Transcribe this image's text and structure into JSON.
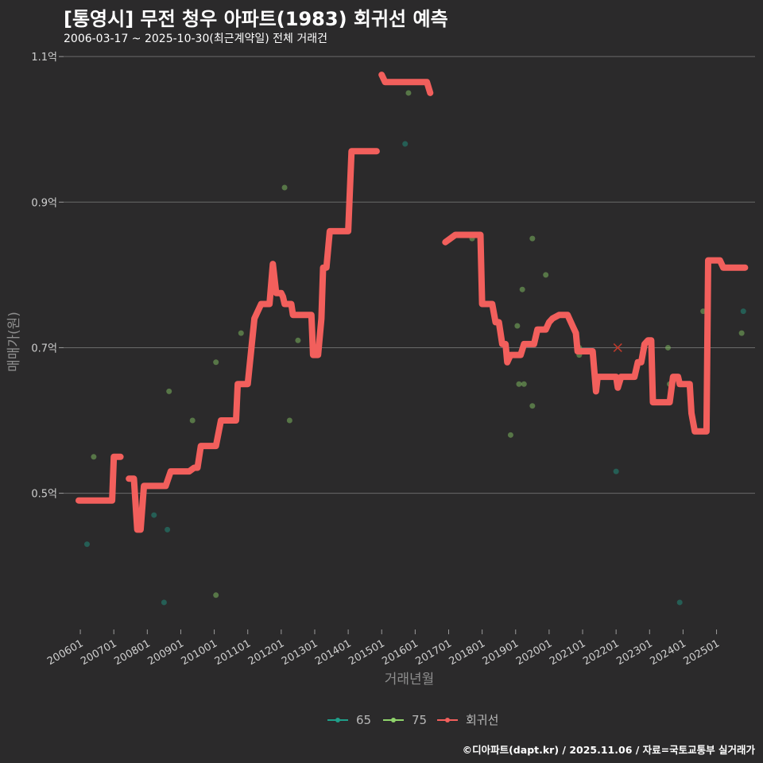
{
  "title": "[통영시] 무전 청우 아파트(1983) 회귀선 예측",
  "subtitle": "2006-03-17 ~ 2025-10-30(최근계약일) 전체 거래건",
  "caption": "©디아파트(dapt.kr) / 2025.11.06 / 자료=국토교통부 실거래가",
  "colors": {
    "background": "#2b2a2b",
    "grid": "#6b6b6b",
    "s65": "#1f9e89",
    "s75": "#8fd36b",
    "regression": "#f25f5c",
    "marker_x": "#c0392b"
  },
  "chart_data": {
    "type": "scatter",
    "title": "[통영시] 무전 청우 아파트(1983) 회귀선 예측",
    "xlabel": "거래년월",
    "ylabel": "매매가(원)",
    "x_unit": "decimal year",
    "ylim": [
      0.315,
      1.11
    ],
    "xlim": [
      2005.5,
      2026.15
    ],
    "y_ticks": [
      {
        "value": 0.5,
        "label": "0.5억"
      },
      {
        "value": 0.7,
        "label": "0.7억"
      },
      {
        "value": 0.9,
        "label": "0.9억"
      },
      {
        "value": 1.1,
        "label": "1.1억"
      }
    ],
    "x_ticks": [
      {
        "value": 2006,
        "label": "200601"
      },
      {
        "value": 2007,
        "label": "200701"
      },
      {
        "value": 2008,
        "label": "200801"
      },
      {
        "value": 2009,
        "label": "200901"
      },
      {
        "value": 2010,
        "label": "201001"
      },
      {
        "value": 2011,
        "label": "201101"
      },
      {
        "value": 2012,
        "label": "201201"
      },
      {
        "value": 2013,
        "label": "201301"
      },
      {
        "value": 2014,
        "label": "201401"
      },
      {
        "value": 2015,
        "label": "201501"
      },
      {
        "value": 2016,
        "label": "201601"
      },
      {
        "value": 2017,
        "label": "201701"
      },
      {
        "value": 2018,
        "label": "201801"
      },
      {
        "value": 2019,
        "label": "201901"
      },
      {
        "value": 2020,
        "label": "202001"
      },
      {
        "value": 2021,
        "label": "202101"
      },
      {
        "value": 2022,
        "label": "202201"
      },
      {
        "value": 2023,
        "label": "202301"
      },
      {
        "value": 2024,
        "label": "202401"
      },
      {
        "value": 2025,
        "label": "202501"
      }
    ],
    "legend": [
      {
        "name": "65",
        "key": "s65"
      },
      {
        "name": "75",
        "key": "s75"
      },
      {
        "name": "회귀선",
        "key": "regression"
      }
    ],
    "scatter_points": [
      {
        "x": 2006.2,
        "y": 0.43,
        "series": "65"
      },
      {
        "x": 2006.4,
        "y": 0.55,
        "series": "75"
      },
      {
        "x": 2008.2,
        "y": 0.47,
        "series": "65"
      },
      {
        "x": 2008.6,
        "y": 0.45,
        "series": "65"
      },
      {
        "x": 2008.5,
        "y": 0.35,
        "series": "65"
      },
      {
        "x": 2008.65,
        "y": 0.64,
        "series": "75"
      },
      {
        "x": 2009.35,
        "y": 0.6,
        "series": "75"
      },
      {
        "x": 2010.05,
        "y": 0.68,
        "series": "75"
      },
      {
        "x": 2010.05,
        "y": 0.36,
        "series": "75"
      },
      {
        "x": 2010.8,
        "y": 0.72,
        "series": "75"
      },
      {
        "x": 2012.1,
        "y": 0.92,
        "series": "75"
      },
      {
        "x": 2012.25,
        "y": 0.6,
        "series": "75"
      },
      {
        "x": 2012.5,
        "y": 0.71,
        "series": "75"
      },
      {
        "x": 2015.7,
        "y": 0.98,
        "series": "65"
      },
      {
        "x": 2015.8,
        "y": 1.05,
        "series": "75"
      },
      {
        "x": 2017.7,
        "y": 0.85,
        "series": "75"
      },
      {
        "x": 2017.8,
        "y": 0.855,
        "series": "75"
      },
      {
        "x": 2018.85,
        "y": 0.58,
        "series": "75"
      },
      {
        "x": 2019.05,
        "y": 0.73,
        "series": "75"
      },
      {
        "x": 2019.1,
        "y": 0.65,
        "series": "75"
      },
      {
        "x": 2019.25,
        "y": 0.65,
        "series": "75"
      },
      {
        "x": 2019.2,
        "y": 0.78,
        "series": "75"
      },
      {
        "x": 2019.5,
        "y": 0.85,
        "series": "75"
      },
      {
        "x": 2019.5,
        "y": 0.62,
        "series": "75"
      },
      {
        "x": 2019.9,
        "y": 0.8,
        "series": "75"
      },
      {
        "x": 2020.9,
        "y": 0.69,
        "series": "75"
      },
      {
        "x": 2020.9,
        "y": 0.7,
        "series": "75"
      },
      {
        "x": 2022.0,
        "y": 0.53,
        "series": "65"
      },
      {
        "x": 2023.55,
        "y": 0.7,
        "series": "75"
      },
      {
        "x": 2023.6,
        "y": 0.65,
        "series": "75"
      },
      {
        "x": 2023.9,
        "y": 0.35,
        "series": "65"
      },
      {
        "x": 2024.6,
        "y": 0.75,
        "series": "75"
      },
      {
        "x": 2025.75,
        "y": 0.72,
        "series": "75"
      },
      {
        "x": 2025.8,
        "y": 0.75,
        "series": "65"
      }
    ],
    "x_markers": [
      {
        "x": 2022.05,
        "y": 0.7
      }
    ],
    "regression_segments": [
      [
        [
          2005.95,
          0.49
        ],
        [
          2006.95,
          0.49
        ],
        [
          2007.0,
          0.55
        ],
        [
          2007.2,
          0.55
        ]
      ],
      [
        [
          2007.45,
          0.52
        ],
        [
          2007.6,
          0.52
        ],
        [
          2007.7,
          0.45
        ],
        [
          2007.8,
          0.45
        ],
        [
          2007.9,
          0.51
        ],
        [
          2008.55,
          0.51
        ],
        [
          2008.7,
          0.53
        ],
        [
          2009.2,
          0.53
        ],
        [
          2009.25,
          0.53
        ],
        [
          2009.4,
          0.535
        ],
        [
          2009.5,
          0.535
        ],
        [
          2009.6,
          0.565
        ],
        [
          2010.05,
          0.565
        ],
        [
          2010.2,
          0.6
        ],
        [
          2010.65,
          0.6
        ],
        [
          2010.7,
          0.65
        ],
        [
          2011.0,
          0.65
        ],
        [
          2011.2,
          0.74
        ],
        [
          2011.4,
          0.76
        ],
        [
          2011.65,
          0.76
        ],
        [
          2011.75,
          0.815
        ],
        [
          2011.85,
          0.775
        ],
        [
          2012.0,
          0.775
        ],
        [
          2012.05,
          0.77
        ],
        [
          2012.1,
          0.76
        ],
        [
          2012.3,
          0.76
        ],
        [
          2012.35,
          0.745
        ],
        [
          2012.9,
          0.745
        ],
        [
          2012.95,
          0.69
        ],
        [
          2013.1,
          0.69
        ],
        [
          2013.2,
          0.74
        ],
        [
          2013.25,
          0.81
        ],
        [
          2013.35,
          0.81
        ],
        [
          2013.45,
          0.86
        ],
        [
          2014.0,
          0.86
        ],
        [
          2014.1,
          0.97
        ],
        [
          2014.85,
          0.97
        ]
      ],
      [
        [
          2015.0,
          1.075
        ],
        [
          2015.1,
          1.065
        ],
        [
          2016.35,
          1.065
        ],
        [
          2016.45,
          1.05
        ]
      ],
      [
        [
          2016.9,
          0.845
        ],
        [
          2017.05,
          0.85
        ],
        [
          2017.2,
          0.855
        ],
        [
          2017.95,
          0.855
        ],
        [
          2018.0,
          0.76
        ],
        [
          2018.3,
          0.76
        ],
        [
          2018.4,
          0.735
        ],
        [
          2018.5,
          0.735
        ],
        [
          2018.6,
          0.705
        ],
        [
          2018.7,
          0.705
        ],
        [
          2018.75,
          0.68
        ],
        [
          2018.85,
          0.69
        ],
        [
          2019.15,
          0.69
        ],
        [
          2019.25,
          0.705
        ],
        [
          2019.55,
          0.705
        ],
        [
          2019.65,
          0.725
        ],
        [
          2019.9,
          0.725
        ],
        [
          2020.0,
          0.735
        ],
        [
          2020.1,
          0.74
        ],
        [
          2020.3,
          0.745
        ],
        [
          2020.55,
          0.745
        ],
        [
          2020.7,
          0.73
        ],
        [
          2020.8,
          0.72
        ],
        [
          2020.85,
          0.695
        ],
        [
          2021.3,
          0.695
        ],
        [
          2021.4,
          0.64
        ],
        [
          2021.45,
          0.66
        ],
        [
          2022.0,
          0.66
        ],
        [
          2022.05,
          0.645
        ],
        [
          2022.15,
          0.66
        ],
        [
          2022.55,
          0.66
        ],
        [
          2022.65,
          0.68
        ],
        [
          2022.75,
          0.68
        ],
        [
          2022.85,
          0.705
        ],
        [
          2022.95,
          0.71
        ],
        [
          2023.05,
          0.71
        ],
        [
          2023.1,
          0.625
        ],
        [
          2023.5,
          0.625
        ],
        [
          2023.6,
          0.625
        ],
        [
          2023.7,
          0.66
        ],
        [
          2023.85,
          0.66
        ],
        [
          2023.9,
          0.65
        ],
        [
          2024.2,
          0.65
        ],
        [
          2024.25,
          0.61
        ],
        [
          2024.35,
          0.585
        ],
        [
          2024.7,
          0.585
        ],
        [
          2024.75,
          0.82
        ],
        [
          2024.8,
          0.82
        ],
        [
          2025.1,
          0.82
        ],
        [
          2025.2,
          0.81
        ],
        [
          2025.85,
          0.81
        ]
      ]
    ]
  }
}
